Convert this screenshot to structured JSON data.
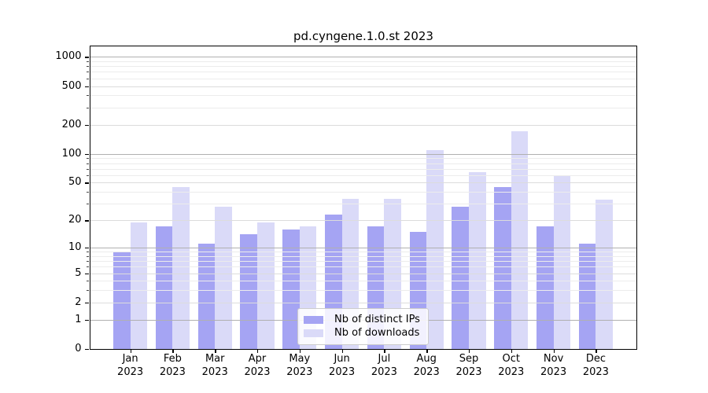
{
  "title": "pd.cyngene.1.0.st 2023",
  "chart_data": {
    "type": "bar",
    "title": "pd.cyngene.1.0.st 2023",
    "categories": [
      "Jan",
      "Feb",
      "Mar",
      "Apr",
      "May",
      "Jun",
      "Jul",
      "Aug",
      "Sep",
      "Oct",
      "Nov",
      "Dec"
    ],
    "year": "2023",
    "series": [
      {
        "name": "Nb of distinct IPs",
        "color": "#a5a4f3",
        "values": [
          9,
          17,
          11,
          14,
          16,
          23,
          17,
          15,
          28,
          45,
          17,
          11
        ]
      },
      {
        "name": "Nb of downloads",
        "color": "#dadaf8",
        "values": [
          19,
          45,
          28,
          19,
          17,
          34,
          34,
          110,
          65,
          170,
          60,
          33
        ]
      }
    ],
    "xlabel": "",
    "ylabel": "",
    "yscale": "log1p",
    "ylim": [
      0,
      1280
    ],
    "yticks_labeled": [
      0,
      1,
      2,
      5,
      10,
      20,
      50,
      100,
      200,
      500,
      1000
    ],
    "yticks_decade": [
      1,
      10,
      100,
      1000
    ],
    "yticks_minor": [
      3,
      4,
      6,
      7,
      8,
      9,
      30,
      40,
      60,
      70,
      80,
      90,
      300,
      400,
      600,
      700,
      800,
      900
    ],
    "grid": "both, drawn over bars",
    "legend_position": "lower center"
  },
  "colors": {
    "bar_ips": "#a5a4f3",
    "bar_downloads": "#dadaf8",
    "grid_decade": "#b0b0b0",
    "grid_mid": "#dcdcdc",
    "grid_minor": "#ececec",
    "spine": "#000000"
  }
}
